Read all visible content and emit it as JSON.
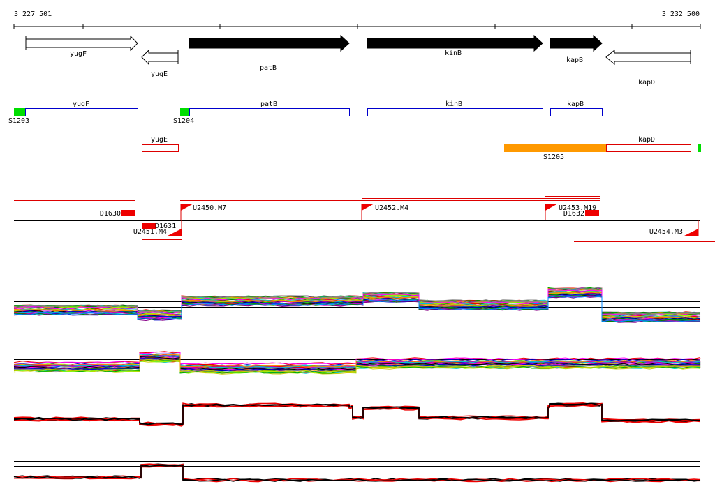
{
  "ruler": {
    "start": "3 227 501",
    "end": "3 232 500"
  },
  "gene_arrows": [
    "yugF",
    "yugE",
    "patB",
    "kinB",
    "kapB",
    "kapD"
  ],
  "coding_boxes": [
    "yugF",
    "patB",
    "kinB",
    "kapB",
    "yugE",
    "kapD"
  ],
  "sites": [
    "S1203",
    "S1204",
    "S1205"
  ],
  "segments": [
    "D1630",
    "D1631",
    "U2450.M7",
    "U2451.M4",
    "U2452.M4",
    "U2453.M19",
    "D1632",
    "U2454.M3"
  ]
}
